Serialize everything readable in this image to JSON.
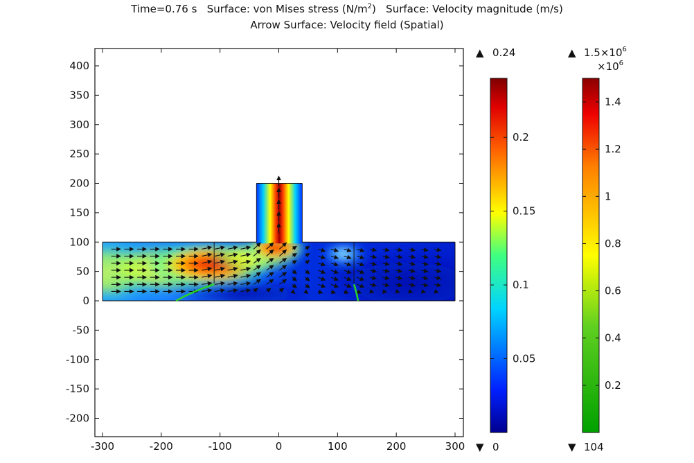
{
  "title": {
    "line1_prefix": "Time=0.76 s   Surface: von Mises stress (N/m",
    "line1_sup": "2",
    "line1_suffix": ")   Surface: Velocity magnitude (m/s)",
    "line2": "Arrow Surface: Velocity field (Spatial)"
  },
  "chart_data": {
    "type": "heatmap",
    "x_ticks": [
      -300,
      -200,
      -100,
      0,
      100,
      200,
      300
    ],
    "y_ticks": [
      -200,
      -150,
      -100,
      -50,
      0,
      50,
      100,
      150,
      200,
      250,
      300,
      350,
      400
    ],
    "xlim": [
      -300,
      300
    ],
    "ylim": [
      -220,
      430
    ],
    "geometry": {
      "main_channel": {
        "x": [
          -300,
          300
        ],
        "y": [
          0,
          100
        ]
      },
      "outlet_branch": {
        "x": [
          -38,
          40
        ],
        "y": [
          100,
          200
        ]
      },
      "walls": [
        {
          "base_x": -110,
          "tip_y": 100,
          "bend_to": [
            -175,
            0
          ]
        },
        {
          "base_x": 128,
          "tip_y": 100,
          "bend_to": [
            135,
            0
          ]
        }
      ]
    },
    "colorbars": [
      {
        "quantity": "Velocity magnitude (m/s)",
        "max_label": "0.24",
        "min_label": "0",
        "ticks": [
          0.05,
          0.1,
          0.15,
          0.2
        ],
        "tick_labels": [
          "0.05",
          "0.1",
          "0.15",
          "0.2"
        ],
        "range": [
          0,
          0.24
        ],
        "colormap": "rainbow"
      },
      {
        "quantity": "von Mises stress (N/m2)",
        "max_label": "1.5×10",
        "max_label_sup": "6",
        "multiplier": "×10",
        "multiplier_sup": "6",
        "min_label": "104",
        "ticks": [
          0.2,
          0.4,
          0.6,
          0.8,
          1.0,
          1.2,
          1.4
        ],
        "tick_labels": [
          "0.2",
          "0.4",
          "0.6",
          "0.8",
          "1",
          "1.2",
          "1.4"
        ],
        "range": [
          0,
          1.5
        ],
        "colormap": "traffic"
      }
    ]
  },
  "markers": {
    "up": "▲",
    "down": "▼"
  },
  "colors": {
    "cold": "#0a1aa8",
    "hot": "#8c0f0f",
    "wall": "#2bd12b"
  }
}
